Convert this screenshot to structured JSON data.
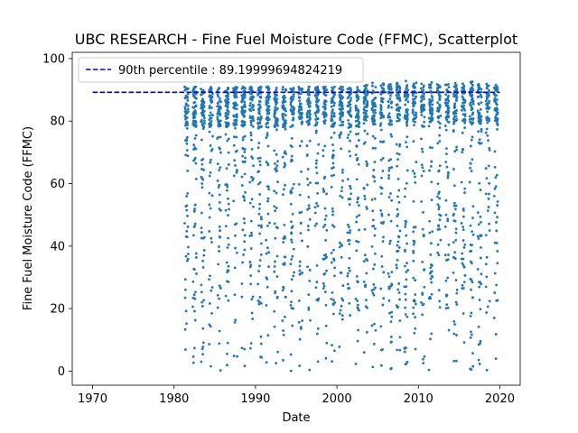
{
  "chart_data": {
    "type": "scatter",
    "title": "UBC RESEARCH - Fine Fuel Moisture Code (FFMC), Scatterplot",
    "xlabel": "Date",
    "ylabel": "Fine Fuel Moisture Code (FFMC)",
    "xlim": [
      1967.5,
      2022.5
    ],
    "ylim": [
      -4.5,
      102
    ],
    "x_ticks": [
      1970,
      1980,
      1990,
      2000,
      2010,
      2020
    ],
    "y_ticks": [
      0,
      20,
      40,
      60,
      80,
      100
    ],
    "grid": false,
    "legend": {
      "placement": "top-left",
      "entries": [
        {
          "label": "90th percentile : 89.19999694824219",
          "style": "dashed-line",
          "color": "#0000cc"
        }
      ]
    },
    "series": [
      {
        "kind": "points",
        "color": "#1f77b4",
        "summary": {
          "x_range": [
            1981.3,
            2019.3
          ],
          "y_range": [
            0,
            97.5
          ],
          "density_note": "dense band between 80 and 92 each year, sparse points down to 0"
        }
      },
      {
        "name": "90th percentile : 89.19999694824219",
        "kind": "hline",
        "y": 89.19999694824219,
        "x_range": [
          1970,
          2020
        ],
        "color": "#0000cc"
      }
    ]
  }
}
